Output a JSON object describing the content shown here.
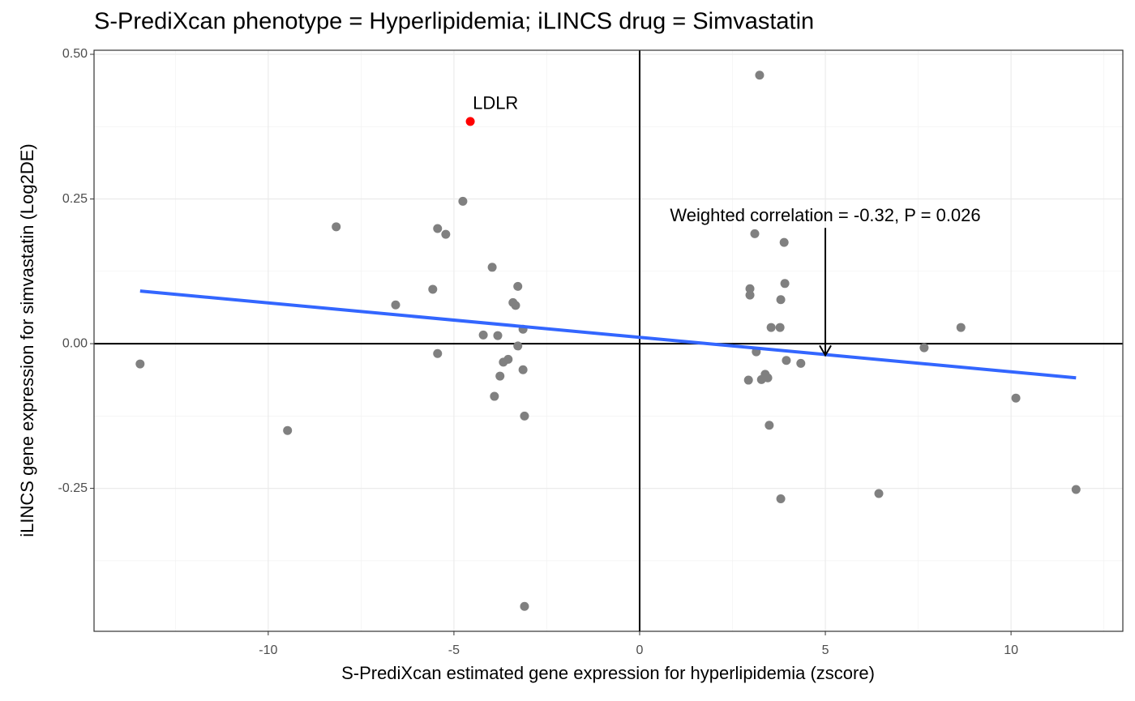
{
  "chart_data": {
    "type": "scatter",
    "title": "S-PrediXcan phenotype = Hyperlipidemia; iLINCS drug = Simvastatin",
    "x_label": "S-PrediXcan estimated gene expression for hyperlipidemia (zscore)",
    "y_label": "iLINCS gene expression for simvastatin (Log2DE)",
    "xlim": [
      -14.69,
      13.01
    ],
    "ylim": [
      -0.497,
      0.507
    ],
    "xticks": [
      -10,
      -5,
      0,
      5,
      10
    ],
    "yticks": [
      -0.25,
      {
        "value": 0,
        "label": "0.00"
      },
      0.25,
      {
        "value": 0.5,
        "label": "0.50"
      }
    ],
    "grid": true,
    "hline": 0,
    "vline": 0,
    "points": {
      "color": "#808080",
      "x": [
        3.23,
        -4.76,
        -8.17,
        -5.44,
        -5.22,
        3.1,
        3.89,
        -3.97,
        -3.28,
        -5.57,
        2.97,
        3.91,
        2.97,
        -3.41,
        -3.34,
        -6.57,
        3.8,
        3.54,
        3.78,
        8.65,
        -4.21,
        -3.82,
        -3.14,
        -3.28,
        7.66,
        3.14,
        -5.44,
        -3.54,
        -3.67,
        3.95,
        4.34,
        -13.45,
        -3.14,
        3.38,
        3.45,
        3.28,
        2.93,
        -3.76,
        -3.91,
        10.13,
        -3.1,
        3.49,
        -9.48,
        6.44,
        11.75,
        3.8,
        -3.1
      ],
      "y": [
        0.464,
        0.246,
        0.202,
        0.199,
        0.189,
        0.19,
        0.175,
        0.132,
        0.099,
        0.094,
        0.095,
        0.104,
        0.084,
        0.071,
        0.066,
        0.067,
        0.076,
        0.028,
        0.028,
        0.028,
        0.015,
        0.014,
        0.025,
        -0.004,
        -0.007,
        -0.014,
        -0.017,
        -0.027,
        -0.032,
        -0.029,
        -0.034,
        -0.035,
        -0.045,
        -0.053,
        -0.059,
        -0.062,
        -0.063,
        -0.056,
        -0.091,
        -0.094,
        -0.125,
        -0.141,
        -0.15,
        -0.259,
        -0.252,
        -0.268,
        -0.454
      ]
    },
    "highlight": {
      "label": "LDLR",
      "x": -4.56,
      "y": 0.384,
      "color": "#ff0000"
    },
    "fit": {
      "color": "#3366ff",
      "x": [
        -13.45,
        11.75
      ],
      "y": [
        0.091,
        -0.059
      ]
    },
    "annotation": {
      "text": "Weighted correlation = -0.32, P = 0.026",
      "x": 5,
      "y": [
        0.2,
        -0.02
      ]
    }
  }
}
